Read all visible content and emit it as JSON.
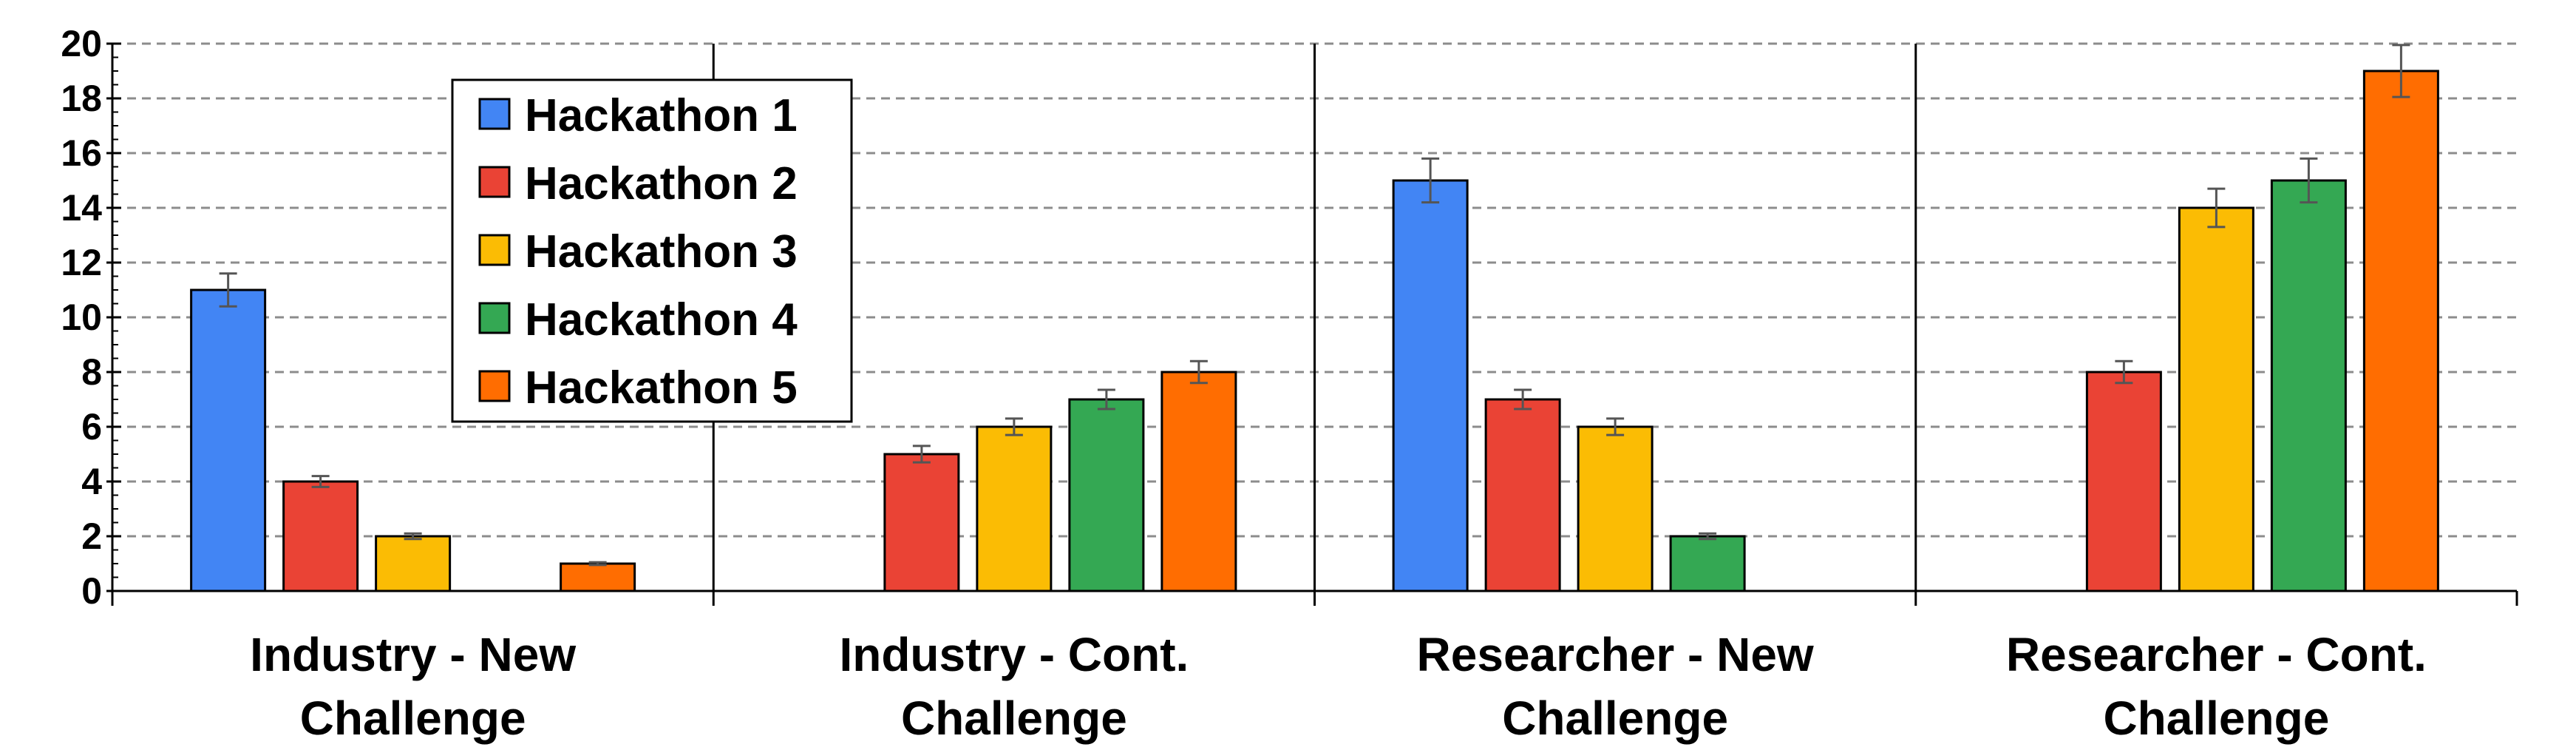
{
  "chart_data": {
    "type": "bar",
    "categories": [
      [
        "Industry - New",
        "Challenge"
      ],
      [
        "Industry - Cont.",
        "Challenge"
      ],
      [
        "Researcher - New",
        "Challenge"
      ],
      [
        "Researcher - Cont.",
        "Challenge"
      ]
    ],
    "series": [
      {
        "name": "Hackathon 1",
        "color": "#4285f4",
        "values": [
          11,
          null,
          15,
          null
        ],
        "errors": [
          0.6,
          null,
          0.8,
          null
        ]
      },
      {
        "name": "Hackathon 2",
        "color": "#ea4335",
        "values": [
          4,
          5,
          7,
          8
        ],
        "errors": [
          0.2,
          0.3,
          0.35,
          0.4
        ]
      },
      {
        "name": "Hackathon 3",
        "color": "#fbbc04",
        "values": [
          2,
          6,
          6,
          14
        ],
        "errors": [
          0.1,
          0.3,
          0.3,
          0.7
        ]
      },
      {
        "name": "Hackathon 4",
        "color": "#34a853",
        "values": [
          null,
          7,
          2,
          15
        ],
        "errors": [
          null,
          0.35,
          0.1,
          0.8
        ]
      },
      {
        "name": "Hackathon 5",
        "color": "#ff6d01",
        "values": [
          1,
          8,
          null,
          19
        ],
        "errors": [
          0.05,
          0.4,
          null,
          0.95
        ]
      }
    ],
    "yticks": [
      0,
      2,
      4,
      6,
      8,
      10,
      12,
      14,
      16,
      18,
      20
    ],
    "ylim": [
      0,
      20
    ],
    "grid": true,
    "legend_position": "top-left-inside"
  }
}
